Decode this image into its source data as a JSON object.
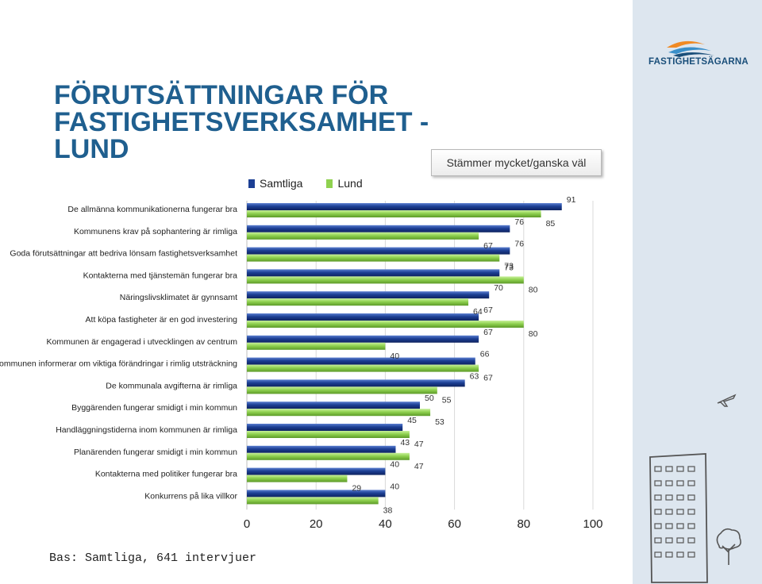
{
  "brand": {
    "name": "FASTIGHETSÄGARNA"
  },
  "title": "FÖRUTSÄTTNINGAR FÖR FASTIGHETSVERKSAMHET - LUND",
  "question": "Stämmer mycket/ganska väl",
  "footer": "Bas: Samtliga, 641 intervjuer",
  "colors": {
    "samtliga": "#1c3f94",
    "lund": "#8fd14f",
    "title": "#1f5f8f",
    "sidebar": "#dde6ef"
  },
  "icons": [
    "logo-icon",
    "plane-icon",
    "building-icon",
    "tree-icon"
  ],
  "chart_data": {
    "type": "bar",
    "orientation": "horizontal",
    "categories": [
      "De allmänna kommunikationerna fungerar bra",
      "Kommunens krav på sophantering är rimliga",
      "Goda förutsättningar att bedriva lönsam fastighetsverksamhet",
      "Kontakterna med tjänstemän fungerar bra",
      "Näringslivsklimatet är gynnsamt",
      "Att köpa fastigheter är en god investering",
      "Kommunen är engagerad i utvecklingen av centrum",
      "Kommunen informerar om viktiga förändringar i rimlig utsträckning",
      "De kommunala avgifterna är rimliga",
      "Byggärenden fungerar smidigt i min kommun",
      "Handläggningstiderna inom kommunen är rimliga",
      "Planärenden fungerar smidigt i min kommun",
      "Kontakterna med politiker fungerar bra",
      "Konkurrens på lika villkor"
    ],
    "series": [
      {
        "name": "Samtliga",
        "values": [
          91,
          76,
          76,
          73,
          70,
          67,
          67,
          66,
          63,
          50,
          45,
          43,
          40,
          40
        ]
      },
      {
        "name": "Lund",
        "values": [
          85,
          67,
          73,
          80,
          64,
          80,
          40,
          67,
          55,
          53,
          47,
          47,
          29,
          38
        ]
      }
    ],
    "xlim": [
      0,
      100
    ],
    "xticks": [
      "0",
      "20",
      "40",
      "60",
      "80",
      "100"
    ],
    "grid": true,
    "legend_position": "top"
  }
}
